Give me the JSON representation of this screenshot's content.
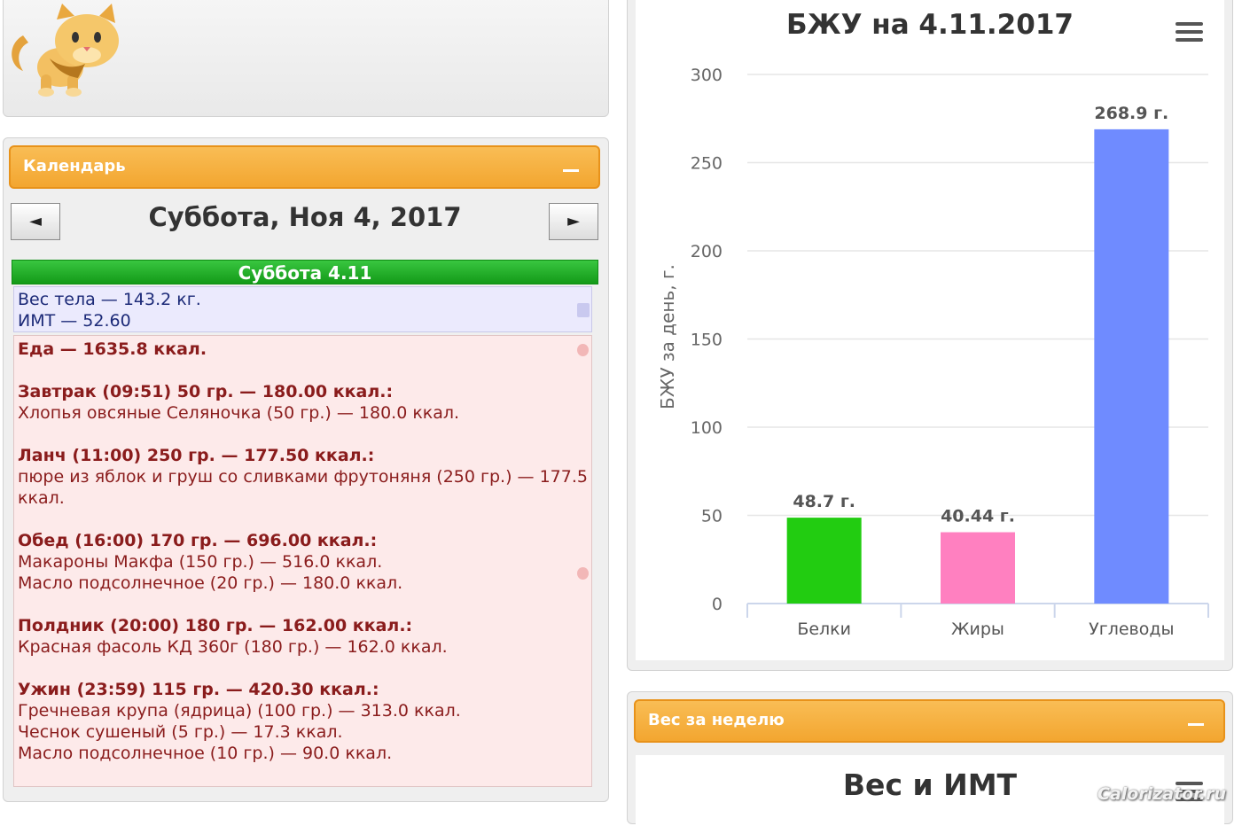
{
  "calendar": {
    "header": "Календарь",
    "date_title": "Суббота, Ноя 4, 2017",
    "prev_label": "◄",
    "next_label": "►",
    "day_header": "Суббота 4.11",
    "weight_line": "Вес тела — 143.2 кг.",
    "bmi_line": "ИМТ — 52.60",
    "food_lines": [
      {
        "text": "Еда — 1635.8 ккал.",
        "bold": true
      },
      {
        "text": "Завтрак (09:51) 50 гр. — 180.00 ккал.:",
        "bold": true
      },
      {
        "text": " Хлопья овсяные Селяночка (50 гр.) — 180.0 ккал.",
        "bold": false
      },
      {
        "text": "Ланч (11:00) 250 гр. — 177.50 ккал.:",
        "bold": true
      },
      {
        "text": " пюре из яблок и груш со сливками фрутоняня (250 гр.) — 177.5",
        "bold": false
      },
      {
        "text": "ккал.",
        "bold": false
      },
      {
        "text": "Обед (16:00) 170 гр. — 696.00 ккал.:",
        "bold": true
      },
      {
        "text": " Макароны Макфа (150 гр.) — 516.0 ккал.",
        "bold": false
      },
      {
        "text": " Масло подсолнечное (20 гр.) — 180.0 ккал.",
        "bold": false
      },
      {
        "text": "Полдник (20:00) 180 гр. — 162.00 ккал.:",
        "bold": true
      },
      {
        "text": " Красная фасоль КД 360г (180 гр.) — 162.0 ккал.",
        "bold": false
      },
      {
        "text": "Ужин (23:59) 115 гр. — 420.30 ккал.:",
        "bold": true
      },
      {
        "text": " Гречневая крупа (ядрица) (100 гр.) — 313.0 ккал.",
        "bold": false
      },
      {
        "text": " Чеснок сушеный (5 гр.) — 17.3 ккал.",
        "bold": false
      },
      {
        "text": " Масло подсолнечное (10 гр.) — 90.0 ккал.",
        "bold": false
      }
    ]
  },
  "chart_data": {
    "type": "bar",
    "title": "БЖУ на 4.11.2017",
    "ylabel": "БЖУ за день, г.",
    "xlabel": "",
    "categories": [
      "Белки",
      "Жиры",
      "Углеводы"
    ],
    "values": [
      48.7,
      40.44,
      268.9
    ],
    "data_labels": [
      "48.7 г.",
      "40.44 г.",
      "268.9 г."
    ],
    "colors": [
      "#22cc11",
      "#ff80c0",
      "#6f8bff"
    ],
    "ylim": [
      0,
      300
    ],
    "yticks": [
      0,
      50,
      100,
      150,
      200,
      250,
      300
    ],
    "grid": true,
    "legend": "none"
  },
  "weight_section": {
    "header": "Вес за неделю",
    "chart_title": "Вес и ИМТ"
  },
  "watermark": "Calorizator.ru",
  "icons": {
    "logo": "cat-icon",
    "menu": "hamburger-icon",
    "weight": "scale-icon",
    "food": "apple-icon"
  }
}
